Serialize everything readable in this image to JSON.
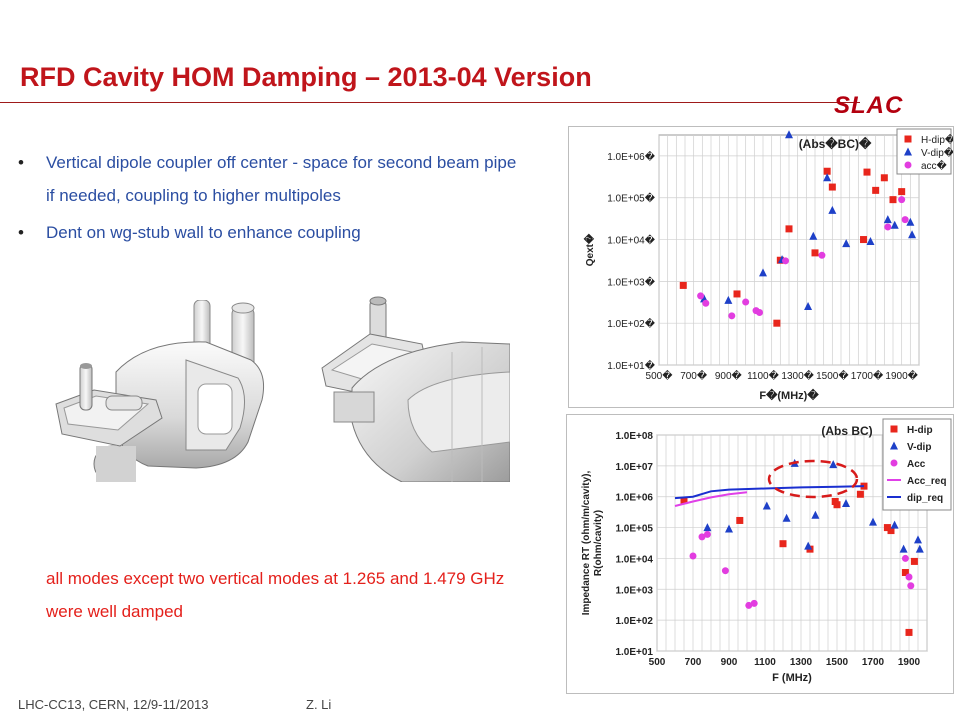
{
  "slide": {
    "title": "RFD Cavity HOM Damping – 2013-04 Version",
    "logo_text": "SLAC",
    "footer_left": "LHC-CC13, CERN, 12/9-11/2013",
    "footer_author": "Z. Li",
    "bullet_char": "•"
  },
  "bullets": [
    "Vertical dipole coupler off center - space for second beam pipe if needed, coupling to higher multipoles",
    "Dent on wg-stub wall to enhance coupling"
  ],
  "note": "all modes except two vertical modes at 1.265 and 1.479 GHz were well damped",
  "colors": {
    "title": "#c0151b",
    "bullet_text": "#2b4ea2",
    "note": "#e4201b",
    "h_dip": "#e8261c",
    "v_dip": "#1e40c8",
    "acc": "#e23de0",
    "acc_req": "#e040e8",
    "dip_req": "#1a2fd0"
  },
  "chart_data": [
    {
      "type": "scatter",
      "title": "(Abs�BC)�",
      "xlabel": "F�(MHz)�",
      "ylabel": "Qext�",
      "xlim": [
        500,
        2000
      ],
      "ylim_log10": [
        1,
        6.5
      ],
      "yscale": "log",
      "grid": true,
      "legend": "top-right",
      "xticks": [
        "500�",
        "700�",
        "900�",
        "1100�",
        "1300�",
        "1500�",
        "1700�",
        "1900�"
      ],
      "yticks": [
        "1.0E+01�",
        "1.0E+02�",
        "1.0E+03�",
        "1.0E+04�",
        "1.0E+05�",
        "1.0E+06�"
      ],
      "series": [
        {
          "name": "H-dip�",
          "marker": "square",
          "points": [
            [
              640,
              800
            ],
            [
              950,
              500
            ],
            [
              1180,
              100
            ],
            [
              1200,
              3200
            ],
            [
              1250,
              18000
            ],
            [
              1400,
              4800
            ],
            [
              1470,
              430000
            ],
            [
              1500,
              180000
            ],
            [
              1680,
              10000
            ],
            [
              1700,
              410000
            ],
            [
              1750,
              150000
            ],
            [
              1800,
              300000
            ],
            [
              1850,
              90000
            ],
            [
              1900,
              140000
            ]
          ]
        },
        {
          "name": "V-dip�",
          "marker": "triangle",
          "points": [
            [
              760,
              380
            ],
            [
              900,
              350
            ],
            [
              1100,
              1600
            ],
            [
              1210,
              3300
            ],
            [
              1250,
              3200000
            ],
            [
              1360,
              250
            ],
            [
              1390,
              12000
            ],
            [
              1470,
              300000
            ],
            [
              1500,
              50000
            ],
            [
              1580,
              8000
            ],
            [
              1720,
              9000
            ],
            [
              1820,
              30000
            ],
            [
              1860,
              22000
            ],
            [
              1950,
              26000
            ],
            [
              1960,
              13000
            ]
          ]
        },
        {
          "name": "acc�",
          "marker": "circle",
          "points": [
            [
              740,
              450
            ],
            [
              770,
              300
            ],
            [
              920,
              150
            ],
            [
              1000,
              320
            ],
            [
              1060,
              200
            ],
            [
              1080,
              180
            ],
            [
              1230,
              3100
            ],
            [
              1440,
              4200
            ],
            [
              1820,
              20000
            ],
            [
              1900,
              90000
            ],
            [
              1920,
              30000
            ],
            [
              2000,
              500000
            ]
          ]
        }
      ]
    },
    {
      "type": "scatter",
      "title": "(Abs BC)",
      "xlabel": "F (MHz)",
      "ylabel": "Impedance RT (ohm/m/cavity), R(ohm/cavity)",
      "xlim": [
        500,
        2000
      ],
      "ylim_log10": [
        1,
        8
      ],
      "yscale": "log",
      "grid": true,
      "legend": "top-right",
      "xticks": [
        "500",
        "700",
        "900",
        "1100",
        "1300",
        "1500",
        "1700",
        "1900"
      ],
      "yticks": [
        "1.0E+01",
        "1.0E+02",
        "1.0E+03",
        "1.0E+04",
        "1.0E+05",
        "1.0E+06",
        "1.0E+07",
        "1.0E+08"
      ],
      "series": [
        {
          "name": "H-dip",
          "marker": "square",
          "points": [
            [
              650,
              750000
            ],
            [
              960,
              170000
            ],
            [
              1200,
              30000
            ],
            [
              1350,
              20000
            ],
            [
              1490,
              700000
            ],
            [
              1500,
              550000
            ],
            [
              1630,
              1200000
            ],
            [
              1650,
              2200000
            ],
            [
              1780,
              100000
            ],
            [
              1800,
              80000
            ],
            [
              1880,
              3500
            ],
            [
              1900,
              40
            ],
            [
              1930,
              8000
            ]
          ]
        },
        {
          "name": "V-dip",
          "marker": "triangle",
          "points": [
            [
              780,
              100000
            ],
            [
              900,
              90000
            ],
            [
              1110,
              500000
            ],
            [
              1220,
              200000
            ],
            [
              1265,
              12000000
            ],
            [
              1340,
              25000
            ],
            [
              1380,
              250000
            ],
            [
              1479,
              11000000
            ],
            [
              1550,
              600000
            ],
            [
              1700,
              150000
            ],
            [
              1820,
              120000
            ],
            [
              1870,
              20000
            ],
            [
              1950,
              40000
            ],
            [
              1960,
              20000
            ]
          ]
        },
        {
          "name": "Acc",
          "marker": "circle",
          "points": [
            [
              700,
              12000
            ],
            [
              750,
              50000
            ],
            [
              780,
              60000
            ],
            [
              880,
              4000
            ],
            [
              1010,
              300
            ],
            [
              1040,
              350
            ],
            [
              1880,
              10000
            ],
            [
              1900,
              2500
            ],
            [
              1910,
              1300
            ]
          ]
        },
        {
          "name": "Acc_req",
          "marker": "line",
          "points": [
            [
              600,
              500000
            ],
            [
              700,
              700000
            ],
            [
              800,
              950000
            ],
            [
              900,
              1200000
            ],
            [
              1000,
              1400000
            ]
          ]
        },
        {
          "name": "dip_req",
          "marker": "line",
          "points": [
            [
              600,
              900000
            ],
            [
              700,
              1000000
            ],
            [
              800,
              1500000
            ],
            [
              900,
              1700000
            ],
            [
              1100,
              1850000
            ],
            [
              1300,
              2000000
            ],
            [
              1500,
              2100000
            ],
            [
              1650,
              2200000
            ]
          ]
        }
      ]
    }
  ]
}
